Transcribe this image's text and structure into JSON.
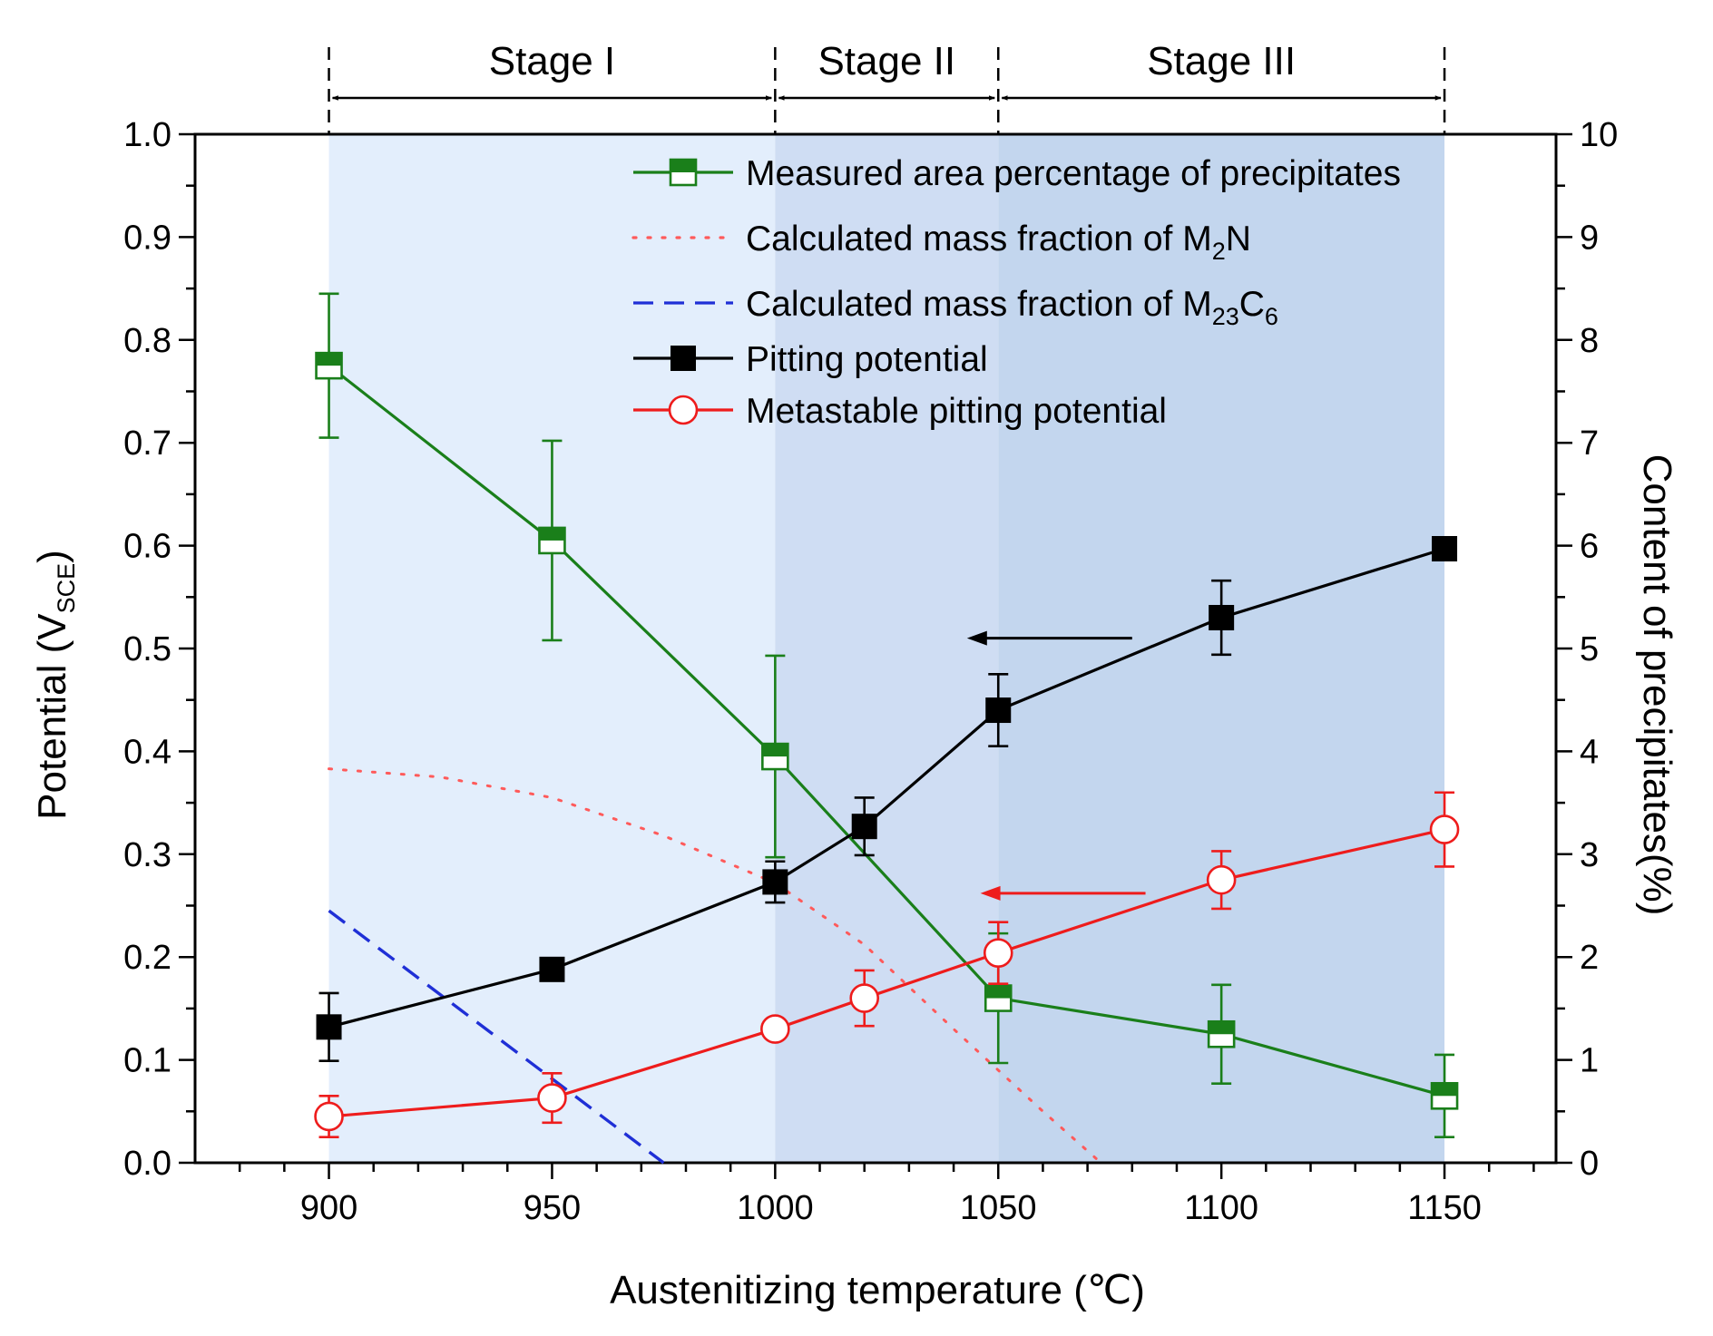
{
  "chart_data": {
    "type": "line",
    "xlabel": "Austenitizing temperature (℃)",
    "ylabel_left": "Potential (V",
    "ylabel_left_sub": "SCE",
    "ylabel_left_close": ")",
    "ylabel_right": "Content of precipitates(%)",
    "xlim": [
      870,
      1175
    ],
    "ylim_left": [
      0.0,
      1.0
    ],
    "ylim_right": [
      0,
      10
    ],
    "x_ticks": [
      900,
      950,
      1000,
      1050,
      1100,
      1150
    ],
    "y_left_ticks": [
      "0.0",
      "0.1",
      "0.2",
      "0.3",
      "0.4",
      "0.5",
      "0.6",
      "0.7",
      "0.8",
      "0.9",
      "1.0"
    ],
    "y_right_ticks": [
      "0",
      "1",
      "2",
      "3",
      "4",
      "5",
      "6",
      "7",
      "8",
      "9",
      "10"
    ],
    "stages": [
      {
        "label": "Stage I",
        "from": 900,
        "to": 1000,
        "shade": "#e3eefc"
      },
      {
        "label": "Stage II",
        "from": 1000,
        "to": 1050,
        "shade": "#cfddf3"
      },
      {
        "label": "Stage III",
        "from": 1050,
        "to": 1150,
        "shade": "#c3d6ee"
      }
    ],
    "series": [
      {
        "name": "Measured area percentage of precipitates",
        "axis": "right",
        "color": "#1a7f1a",
        "marker": "half-square",
        "x": [
          900,
          950,
          1000,
          1050,
          1100,
          1150
        ],
        "y": [
          7.75,
          6.05,
          3.95,
          1.6,
          1.25,
          0.65
        ],
        "err": [
          0.7,
          0.97,
          0.98,
          0.63,
          0.48,
          0.4
        ]
      },
      {
        "name": "Calculated mass fraction of M",
        "name_sub": "2",
        "name_tail": "N",
        "axis": "right",
        "color": "#ff5a5a",
        "style": "dotted",
        "x": [
          900,
          925,
          950,
          975,
          1000,
          1020,
          1040,
          1060,
          1073
        ],
        "y": [
          3.83,
          3.75,
          3.55,
          3.18,
          2.72,
          2.12,
          1.3,
          0.5,
          0.0
        ]
      },
      {
        "name": "Calculated mass fraction of M",
        "name_sub": "23",
        "name_tail": "C",
        "name_sub2": "6",
        "axis": "right",
        "color": "#1f2fd6",
        "style": "dashed",
        "x": [
          900,
          975
        ],
        "y": [
          2.45,
          0.0
        ]
      },
      {
        "name": "Pitting potential",
        "axis": "left",
        "color": "#000000",
        "marker": "square",
        "x": [
          900,
          950,
          1000,
          1020,
          1050,
          1100,
          1150
        ],
        "y": [
          0.132,
          0.188,
          0.273,
          0.327,
          0.44,
          0.53,
          0.597
        ],
        "err": [
          0.033,
          0.0,
          0.02,
          0.028,
          0.035,
          0.036,
          0.0
        ]
      },
      {
        "name": "Metastable pitting potential",
        "axis": "left",
        "color": "#ee1c1c",
        "marker": "open-circle",
        "x": [
          900,
          950,
          1000,
          1020,
          1050,
          1100,
          1150
        ],
        "y": [
          0.045,
          0.063,
          0.13,
          0.16,
          0.204,
          0.275,
          0.324
        ],
        "err": [
          0.02,
          0.024,
          0.0,
          0.027,
          0.03,
          0.028,
          0.036
        ]
      }
    ],
    "annotations": [
      {
        "type": "arrow",
        "direction": "left",
        "color": "#000000",
        "axis": "left",
        "y": 0.51,
        "x_from": 1080,
        "x_to": 1043
      },
      {
        "type": "arrow",
        "direction": "left",
        "color": "#ee1c1c",
        "axis": "left",
        "y": 0.262,
        "x_from": 1083,
        "x_to": 1046
      }
    ]
  }
}
